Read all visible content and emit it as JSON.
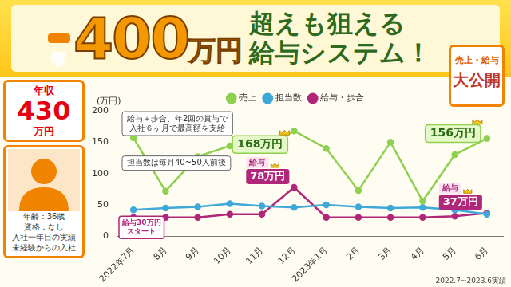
{
  "header": {
    "title": [
      "年収",
      "400",
      "万円",
      "超えも狙える",
      "給与システム！"
    ]
  },
  "badge": [
    "売上・給与",
    "大公開"
  ],
  "profile": {
    "income": [
      "年収",
      "430",
      "万円"
    ],
    "details": [
      "年齢：36歳",
      "資格：なし",
      "入社一年目の実績",
      "未経験からの入社"
    ]
  },
  "chart_data": {
    "type": "line",
    "y_label": "(万円)",
    "categories": [
      "2022年7月",
      "8月",
      "9月",
      "10月",
      "11月",
      "12月",
      "2023年1月",
      "2月",
      "3月",
      "4月",
      "5月",
      "6月"
    ],
    "series": [
      {
        "name": "売上",
        "color": "#8fd14f",
        "marker": "circle",
        "values": [
          157,
          72,
          127,
          144,
          139,
          168,
          140,
          73,
          150,
          56,
          130,
          156
        ]
      },
      {
        "name": "担当数",
        "color": "#3ea8d8",
        "marker": "circle",
        "values": [
          42,
          45,
          47,
          52,
          48,
          46,
          50,
          47,
          45,
          46,
          42,
          35
        ]
      },
      {
        "name": "給与・歩合",
        "color": "#b0277a",
        "marker": "circle",
        "values": [
          30,
          30,
          30,
          35,
          35,
          78,
          30,
          30,
          30,
          30,
          32,
          37
        ]
      }
    ],
    "ylim": [
      0,
      200
    ],
    "yticks": [
      0,
      50,
      100,
      150,
      200
    ],
    "grid": false,
    "legend": "top",
    "annotations": [
      {
        "text": [
          "給与＋歩合、年2回の賞与で",
          "入社６ヶ月で最高額を支給"
        ]
      },
      {
        "text": [
          "担当数は毎月40~50人前後"
        ]
      },
      {
        "text": [
          "給与30万円",
          "スタート"
        ],
        "series": "給与・歩合",
        "category": "2022年7月"
      },
      {
        "text": [
          "168万円"
        ],
        "series": "売上",
        "category": "12月"
      },
      {
        "text": [
          "給与",
          "78万円"
        ],
        "series": "給与・歩合",
        "category": "12月"
      },
      {
        "text": [
          "156万円"
        ],
        "series": "売上",
        "category": "6月"
      },
      {
        "text": [
          "給与",
          "37万円"
        ],
        "series": "給与・歩合",
        "category": "6月"
      }
    ]
  },
  "footnote": "2022.7~2023.6実績"
}
